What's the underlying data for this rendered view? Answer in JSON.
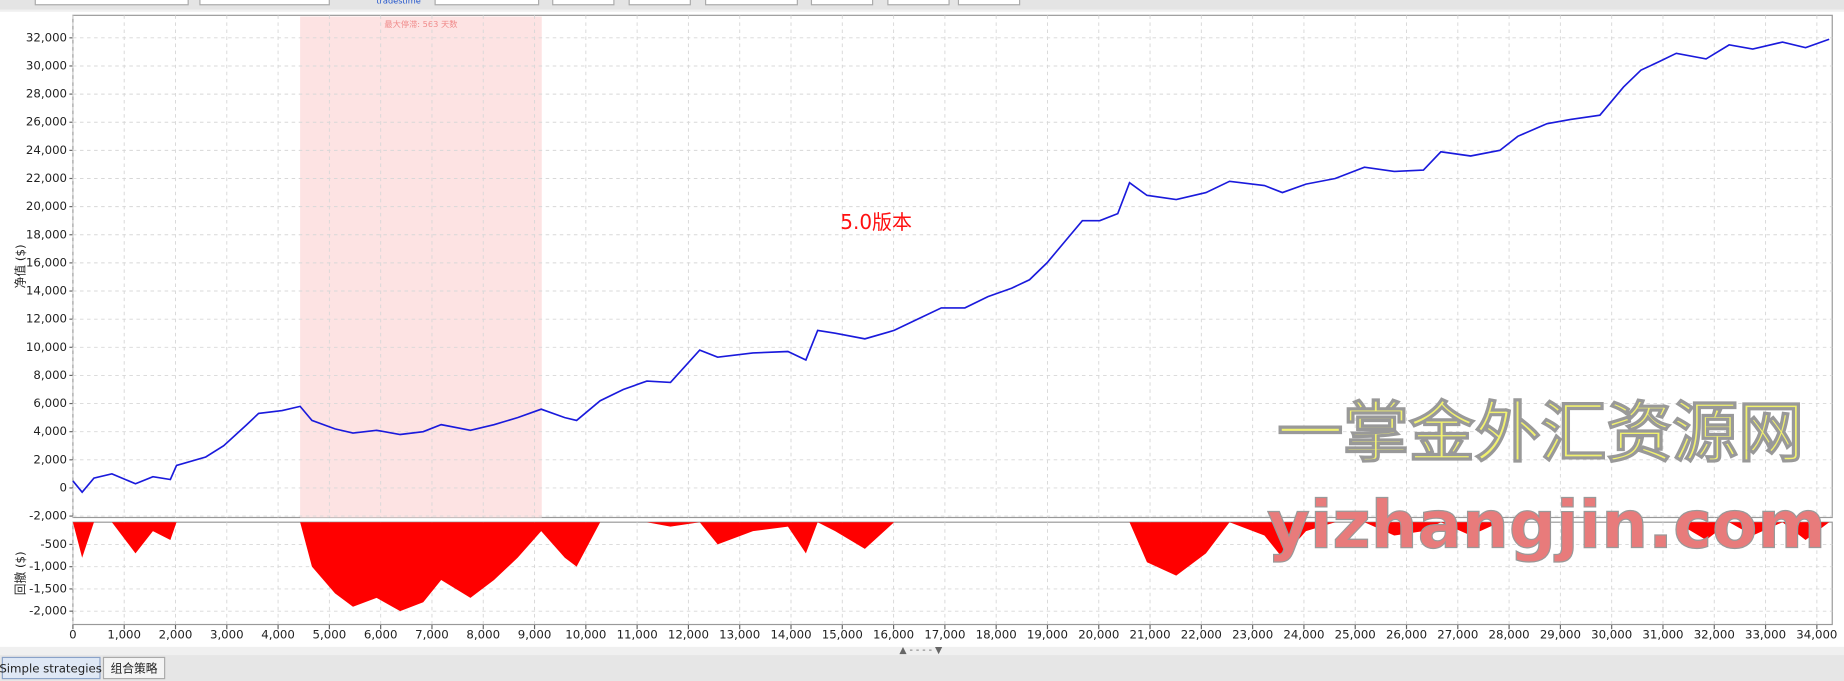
{
  "toolbar": {
    "labels": [
      "trades",
      "time"
    ]
  },
  "tabs": [
    "Simple strategies",
    "组合策略"
  ],
  "watermarks": [
    "一掌金外汇资源网",
    "yizhangjin.com"
  ],
  "chart_data": [
    {
      "type": "line",
      "ylabel": "净值 ($)",
      "color": "#1a1adc",
      "grid": true,
      "annotation": "5.0版本",
      "stagnation": {
        "label": "最大停滞: 563 天数",
        "x": [
          4430,
          9140
        ],
        "color": "#fde3e3"
      },
      "xlim": [
        0,
        34300
      ],
      "ylim": [
        -2100,
        33600
      ],
      "yticks": [
        {
          "value": -2000,
          "label": "-2,000"
        },
        0,
        {
          "value": 2000,
          "label": "2,000"
        },
        {
          "value": 4000,
          "label": "4,000"
        },
        {
          "value": 6000,
          "label": "6,000"
        },
        {
          "value": 8000,
          "label": "8,000"
        },
        {
          "value": 10000,
          "label": "10,000"
        },
        {
          "value": 12000,
          "label": "12,000"
        },
        {
          "value": 14000,
          "label": "14,000"
        },
        {
          "value": 16000,
          "label": "16,000"
        },
        {
          "value": 18000,
          "label": "18,000"
        },
        {
          "value": 20000,
          "label": "20,000"
        },
        {
          "value": 22000,
          "label": "22,000"
        },
        {
          "value": 24000,
          "label": "24,000"
        },
        {
          "value": 26000,
          "label": "26,000"
        },
        {
          "value": 28000,
          "label": "28,000"
        },
        {
          "value": 30000,
          "label": "30,000"
        },
        {
          "value": 32000,
          "label": "32,000"
        }
      ],
      "x": [
        0,
        180,
        410,
        760,
        1220,
        1560,
        1900,
        2020,
        2590,
        2940,
        3390,
        3620,
        4080,
        4430,
        4660,
        5110,
        5460,
        5920,
        6380,
        6830,
        7180,
        7750,
        8210,
        8670,
        9130,
        9590,
        9820,
        10280,
        10730,
        11190,
        11650,
        12220,
        12570,
        13260,
        13940,
        14290,
        14520,
        14860,
        15440,
        16010,
        16470,
        16930,
        17390,
        17840,
        18300,
        18650,
        18990,
        19450,
        19680,
        20020,
        20370,
        20600,
        20940,
        21510,
        22090,
        22550,
        23230,
        23580,
        24040,
        24610,
        25180,
        25760,
        26330,
        26670,
        27250,
        27820,
        28170,
        28740,
        29200,
        29770,
        30230,
        30570,
        30920,
        31260,
        31840,
        32290,
        32750,
        33330,
        33780,
        34240
      ],
      "values": [
        500,
        -300,
        700,
        1000,
        300,
        800,
        600,
        1600,
        2200,
        3000,
        4500,
        5300,
        5500,
        5800,
        4800,
        4200,
        3900,
        4100,
        3800,
        4000,
        4500,
        4100,
        4500,
        5000,
        5600,
        5000,
        4800,
        6200,
        7000,
        7600,
        7500,
        9800,
        9300,
        9600,
        9700,
        9100,
        11200,
        11000,
        10600,
        11200,
        12000,
        12800,
        12800,
        13600,
        14200,
        14800,
        16000,
        18000,
        19000,
        19000,
        19500,
        21700,
        20800,
        20500,
        21000,
        21800,
        21500,
        21000,
        21600,
        22000,
        22800,
        22500,
        22600,
        23900,
        23600,
        24000,
        25000,
        25900,
        26200,
        26500,
        28500,
        29700,
        30300,
        30900,
        30500,
        31500,
        31200,
        31700,
        31300,
        31900
      ]
    },
    {
      "type": "area",
      "ylabel": "回撤 ($)",
      "color": "#ff0000",
      "grid": true,
      "xlim": [
        0,
        34300
      ],
      "ylim": [
        -2300,
        0
      ],
      "yticks": [
        -500,
        {
          "value": -1000,
          "label": "-1,000"
        },
        {
          "value": -1500,
          "label": "-1,500"
        },
        {
          "value": -2000,
          "label": "-2,000"
        }
      ],
      "xticks": [
        0,
        {
          "value": 1000,
          "label": "1,000"
        },
        {
          "value": 2000,
          "label": "2,000"
        },
        {
          "value": 3000,
          "label": "3,000"
        },
        {
          "value": 4000,
          "label": "4,000"
        },
        {
          "value": 5000,
          "label": "5,000"
        },
        {
          "value": 6000,
          "label": "6,000"
        },
        {
          "value": 7000,
          "label": "7,000"
        },
        {
          "value": 8000,
          "label": "8,000"
        },
        {
          "value": 9000,
          "label": "9,000"
        },
        {
          "value": 10000,
          "label": "10,000"
        },
        {
          "value": 11000,
          "label": "11,000"
        },
        {
          "value": 12000,
          "label": "12,000"
        },
        {
          "value": 13000,
          "label": "13,000"
        },
        {
          "value": 14000,
          "label": "14,000"
        },
        {
          "value": 15000,
          "label": "15,000"
        },
        {
          "value": 16000,
          "label": "16,000"
        },
        {
          "value": 17000,
          "label": "17,000"
        },
        {
          "value": 18000,
          "label": "18,000"
        },
        {
          "value": 19000,
          "label": "19,000"
        },
        {
          "value": 20000,
          "label": "20,000"
        },
        {
          "value": 21000,
          "label": "21,000"
        },
        {
          "value": 22000,
          "label": "22,000"
        },
        {
          "value": 23000,
          "label": "23,000"
        },
        {
          "value": 24000,
          "label": "24,000"
        },
        {
          "value": 25000,
          "label": "25,000"
        },
        {
          "value": 26000,
          "label": "26,000"
        },
        {
          "value": 27000,
          "label": "27,000"
        },
        {
          "value": 28000,
          "label": "28,000"
        },
        {
          "value": 29000,
          "label": "29,000"
        },
        {
          "value": 30000,
          "label": "30,000"
        },
        {
          "value": 31000,
          "label": "31,000"
        },
        {
          "value": 32000,
          "label": "32,000"
        },
        {
          "value": 33000,
          "label": "33,000"
        },
        {
          "value": 34000,
          "label": "34,000"
        }
      ],
      "x": [
        0,
        180,
        410,
        760,
        1220,
        1560,
        1900,
        2020,
        2590,
        2940,
        3390,
        3620,
        4080,
        4430,
        4660,
        5110,
        5460,
        5920,
        6380,
        6830,
        7180,
        7750,
        8210,
        8670,
        9130,
        9590,
        9820,
        10280,
        10730,
        11190,
        11650,
        12220,
        12570,
        13260,
        13940,
        14290,
        14520,
        14860,
        15440,
        16010,
        16470,
        16930,
        17390,
        17840,
        18300,
        18650,
        18990,
        19450,
        19680,
        20020,
        20370,
        20600,
        20940,
        21510,
        22090,
        22550,
        23230,
        23580,
        24040,
        24610,
        25180,
        25760,
        26330,
        26670,
        27250,
        27820,
        28170,
        28740,
        29200,
        29770,
        30230,
        30570,
        30920,
        31260,
        31840,
        32290,
        32750,
        33330,
        33780,
        34240
      ],
      "values": [
        0,
        -800,
        0,
        0,
        -700,
        -200,
        -400,
        0,
        0,
        0,
        0,
        0,
        0,
        0,
        -1000,
        -1600,
        -1900,
        -1700,
        -2000,
        -1800,
        -1300,
        -1700,
        -1300,
        -800,
        -200,
        -800,
        -1000,
        0,
        0,
        0,
        -100,
        0,
        -500,
        -200,
        -100,
        -700,
        0,
        -200,
        -600,
        0,
        0,
        0,
        0,
        0,
        0,
        0,
        0,
        0,
        0,
        0,
        0,
        0,
        -900,
        -1200,
        -700,
        0,
        -300,
        -800,
        -200,
        0,
        0,
        -300,
        -200,
        0,
        -300,
        0,
        0,
        0,
        0,
        0,
        0,
        0,
        0,
        0,
        -400,
        0,
        -300,
        0,
        -400,
        0
      ]
    }
  ]
}
